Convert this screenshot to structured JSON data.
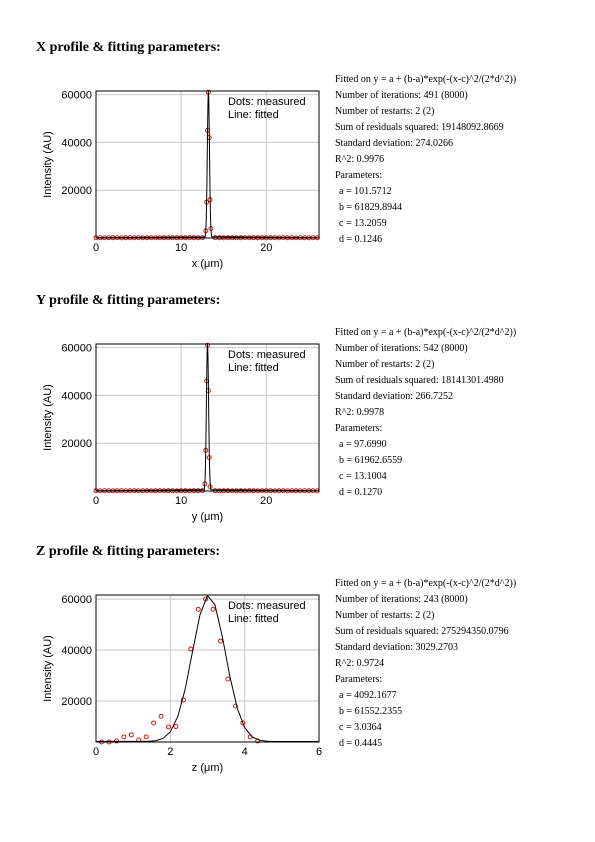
{
  "chart_data": [
    {
      "type": "scatter",
      "title": "X profile & fitting parameters:",
      "annotations": [
        "Fitted on y = a + (b-a)*exp(-(x-c)^2/(2*d^2))",
        "Number of iterations: 491 (8000)",
        "Number of restarts: 2 (2)",
        "Sum of residuals squared: 19148092.8669",
        "Standard deviation: 274.0266",
        "R^2: 0.9976",
        "Parameters:",
        "a = 101.5712",
        "b = 61829.8944",
        "c = 13.2059",
        "d = 0.1246"
      ],
      "xlabel": "x (μm)",
      "ylabel": "Intensity (AU)",
      "xlim": [
        0,
        26.2
      ],
      "ylim": [
        0,
        61500
      ],
      "xticks": [
        0,
        10,
        20
      ],
      "yticks": [
        20000,
        40000,
        60000
      ],
      "grid": true,
      "series": [
        {
          "name": "Dots: measured",
          "color": "#cc0000",
          "style": "markers",
          "x": [
            0,
            0.5,
            1,
            1.5,
            2,
            2.5,
            3,
            3.5,
            4,
            4.5,
            5,
            5.5,
            6,
            6.5,
            7,
            7.5,
            8,
            8.5,
            9,
            9.5,
            10,
            10.5,
            11,
            11.5,
            12,
            12.5,
            12.9,
            13,
            13.1,
            13.2,
            13.3,
            13.4,
            13.5,
            14,
            14.5,
            15,
            15.5,
            16,
            16.5,
            17,
            17.5,
            18,
            18.5,
            19,
            19.5,
            20,
            20.5,
            21,
            21.5,
            22,
            22.5,
            23,
            23.5,
            24,
            24.5,
            25,
            25.5,
            26
          ],
          "values": [
            90,
            120,
            80,
            110,
            100,
            130,
            70,
            100,
            120,
            90,
            110,
            80,
            100,
            130,
            90,
            110,
            100,
            80,
            120,
            100,
            90,
            110,
            130,
            100,
            120,
            150,
            3000,
            15000,
            45000,
            61000,
            42000,
            16000,
            4000,
            130,
            100,
            90,
            120,
            110,
            80,
            100,
            130,
            90,
            110,
            100,
            120,
            80,
            100,
            110,
            90,
            130,
            100,
            120,
            90,
            110,
            100,
            80,
            120,
            100
          ]
        },
        {
          "name": "Line: fitted",
          "color": "#000000",
          "style": "line",
          "x": [
            0,
            12.8,
            12.85,
            12.9,
            12.95,
            13,
            13.05,
            13.1,
            13.15,
            13.2,
            13.25,
            13.3,
            13.35,
            13.4,
            13.45,
            13.5,
            13.55,
            13.6,
            26.2
          ],
          "values": [
            102,
            405,
            1145,
            3130,
            7580,
            15800,
            28300,
            43050,
            55900,
            61750,
            58100,
            46500,
            31700,
            18450,
            9150,
            3920,
            1460,
            510,
            102
          ]
        }
      ]
    },
    {
      "type": "scatter",
      "title": "Y profile & fitting parameters:",
      "annotations": [
        "Fitted on y = a + (b-a)*exp(-(x-c)^2/(2*d^2))",
        "Number of iterations: 542 (8000)",
        "Number of restarts: 2 (2)",
        "Sum of residuals squared: 18141301.4980",
        "Standard deviation: 266.7252",
        "R^2: 0.9978",
        "Parameters:",
        "a = 97.6990",
        "b = 61962.6559",
        "c = 13.1004",
        "d = 0.1270"
      ],
      "xlabel": "y (μm)",
      "ylabel": "Intensity (AU)",
      "xlim": [
        0,
        26.2
      ],
      "ylim": [
        0,
        61500
      ],
      "xticks": [
        0,
        10,
        20
      ],
      "yticks": [
        20000,
        40000,
        60000
      ],
      "grid": true,
      "series": [
        {
          "name": "Dots: measured",
          "color": "#cc0000",
          "style": "markers",
          "x": [
            0,
            0.5,
            1,
            1.5,
            2,
            2.5,
            3,
            3.5,
            4,
            4.5,
            5,
            5.5,
            6,
            6.5,
            7,
            7.5,
            8,
            8.5,
            9,
            9.5,
            10,
            10.5,
            11,
            11.5,
            12,
            12.5,
            12.8,
            12.9,
            13,
            13.1,
            13.2,
            13.3,
            13.4,
            14,
            14.5,
            15,
            15.5,
            16,
            16.5,
            17,
            17.5,
            18,
            18.5,
            19,
            19.5,
            20,
            20.5,
            21,
            21.5,
            22,
            22.5,
            23,
            23.5,
            24,
            24.5,
            25,
            25.5,
            26
          ],
          "values": [
            100,
            80,
            110,
            120,
            90,
            100,
            130,
            80,
            100,
            110,
            90,
            120,
            100,
            80,
            110,
            130,
            90,
            100,
            120,
            80,
            110,
            100,
            90,
            120,
            100,
            140,
            3000,
            17000,
            46000,
            61000,
            42000,
            14000,
            1800,
            120,
            90,
            100,
            110,
            80,
            120,
            100,
            90,
            130,
            100,
            80,
            110,
            100,
            120,
            90,
            100,
            110,
            80,
            120,
            100,
            90,
            110,
            100,
            130,
            90
          ]
        },
        {
          "name": "Line: fitted",
          "color": "#000000",
          "style": "line",
          "x": [
            0,
            12.7,
            12.75,
            12.8,
            12.85,
            12.9,
            12.95,
            13,
            13.05,
            13.1,
            13.15,
            13.2,
            13.25,
            13.3,
            13.35,
            13.4,
            13.45,
            13.5,
            26.2
          ],
          "values": [
            98,
            530,
            1480,
            3900,
            9000,
            18040,
            30900,
            45450,
            57330,
            61960,
            57330,
            45450,
            30900,
            18040,
            9000,
            3900,
            1480,
            530,
            98
          ]
        }
      ]
    },
    {
      "type": "scatter",
      "title": "Z profile & fitting parameters:",
      "annotations": [
        "Fitted on y = a + (b-a)*exp(-(x-c)^2/(2*d^2))",
        "Number of iterations: 243 (8000)",
        "Number of restarts: 2 (2)",
        "Sum of residuals squared: 275294350.0796",
        "Standard deviation: 3029.2703",
        "R^2: 0.9724",
        "Parameters:",
        "a = 4092.1677",
        "b = 61552.2355",
        "c = 3.0364",
        "d = 0.4445"
      ],
      "xlabel": "z (μm)",
      "ylabel": "Intensity (AU)",
      "xlim": [
        0,
        6
      ],
      "ylim": [
        3900,
        61600
      ],
      "xticks": [
        0,
        2,
        4,
        6
      ],
      "yticks": [
        20000,
        40000,
        60000
      ],
      "grid": true,
      "series": [
        {
          "name": "Dots: measured",
          "color": "#cc0000",
          "style": "markers",
          "x": [
            0.15,
            0.35,
            0.55,
            0.75,
            0.95,
            1.15,
            1.35,
            1.55,
            1.75,
            1.95,
            2.15,
            2.35,
            2.55,
            2.75,
            2.95,
            3.15,
            3.35,
            3.55,
            3.75,
            3.95,
            4.15,
            4.35
          ],
          "values": [
            3900,
            3900,
            4300,
            5900,
            6700,
            4700,
            5900,
            11400,
            14000,
            9800,
            10000,
            20400,
            40400,
            56000,
            60000,
            56000,
            43500,
            28600,
            18000,
            11400,
            5900,
            4300
          ]
        },
        {
          "name": "Line: fitted",
          "color": "#000000",
          "style": "line",
          "x": [
            0,
            1.4,
            1.6,
            1.8,
            2,
            2.2,
            2.4,
            2.6,
            2.8,
            3,
            3.2,
            3.4,
            3.6,
            3.8,
            4,
            4.2,
            4.4,
            4.6,
            4.8,
            6
          ],
          "values": [
            4092,
            4150,
            4400,
            5290,
            7880,
            13860,
            24720,
            39600,
            53970,
            61370,
            57760,
            45180,
            29780,
            17190,
            9550,
            5930,
            4610,
            4210,
            4100,
            4092
          ]
        }
      ]
    }
  ]
}
